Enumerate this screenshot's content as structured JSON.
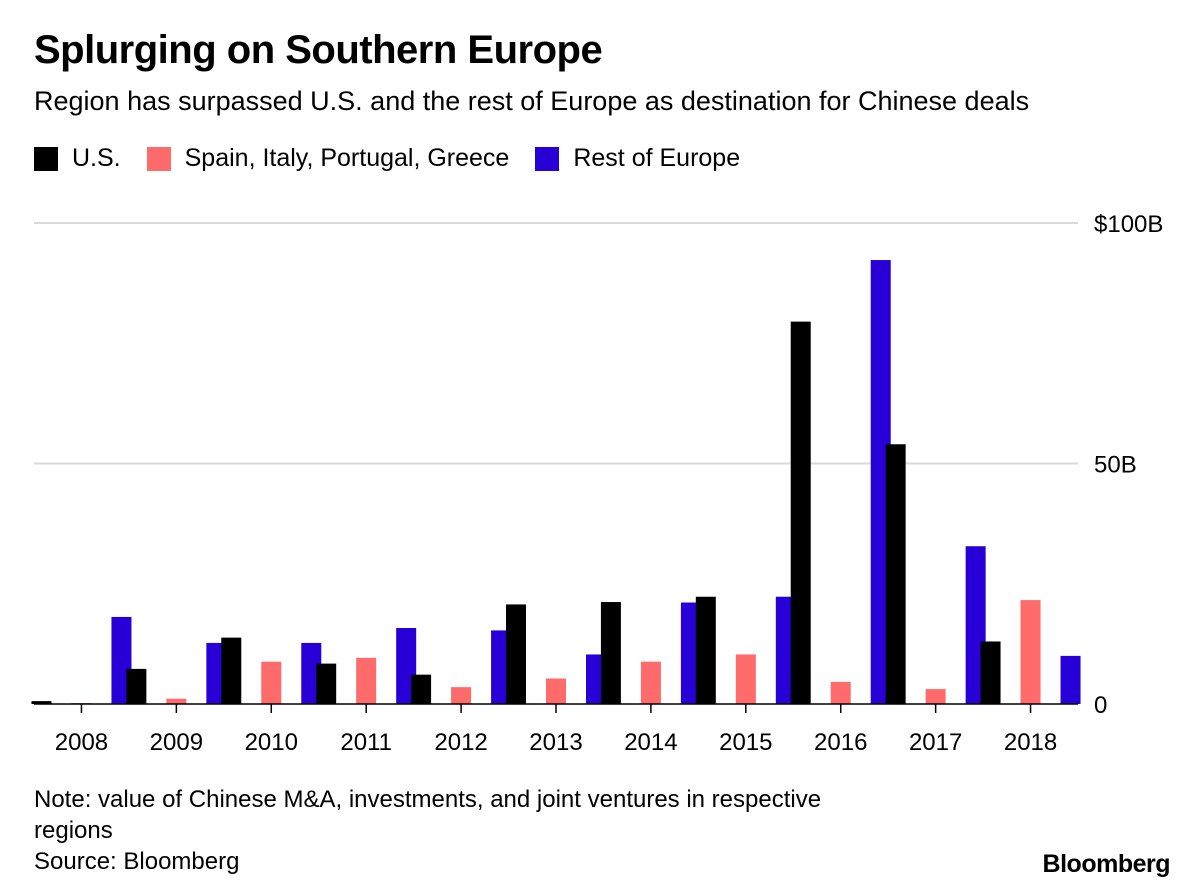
{
  "title": "Splurging on Southern Europe",
  "subtitle": "Region has surpassed U.S. and the rest of Europe as destination for Chinese deals",
  "note_lines": [
    "Note: value of Chinese M&A, investments, and joint ventures in respective",
    "regions"
  ],
  "source": "Source: Bloomberg",
  "brand": "Bloomberg",
  "chart_data": {
    "type": "bar",
    "title": "Splurging on Southern Europe",
    "subtitle": "Region has surpassed U.S. and the rest of Europe as destination for Chinese deals",
    "xlabel": "",
    "ylabel": "",
    "ylim": [
      0,
      100
    ],
    "y_ticks": [
      {
        "value": 100,
        "label": "$100B"
      },
      {
        "value": 50,
        "label": "50B"
      },
      {
        "value": 0,
        "label": "0"
      }
    ],
    "y_axis_position": "right",
    "grid": true,
    "legend_position": "top-left",
    "categories": [
      "2008",
      "2009",
      "2010",
      "2011",
      "2012",
      "2013",
      "2014",
      "2015",
      "2016",
      "2017",
      "2018"
    ],
    "series": [
      {
        "name": "U.S.",
        "color": "#000000",
        "values": [
          0.6,
          7.3,
          13.8,
          8.4,
          6.1,
          20.7,
          21.2,
          22.3,
          79.5,
          54.0,
          13.0
        ]
      },
      {
        "name": "Spain, Italy, Portugal, Greece",
        "color": "#ff6a6a",
        "values": [
          0.2,
          1.1,
          8.8,
          9.6,
          3.5,
          5.3,
          8.8,
          10.3,
          4.6,
          3.1,
          21.6
        ]
      },
      {
        "name": "Rest of Europe",
        "color": "#2800d7",
        "values": [
          18.1,
          12.7,
          12.7,
          15.8,
          15.3,
          10.3,
          21.1,
          22.3,
          92.3,
          32.8,
          10.0
        ]
      }
    ]
  }
}
